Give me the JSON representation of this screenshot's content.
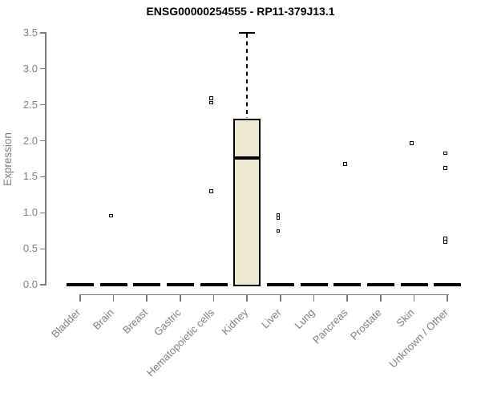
{
  "title": "ENSG00000254555 - RP11-379J13.1",
  "chart_data": {
    "type": "boxplot",
    "title": "ENSG00000254555 - RP11-379J13.1",
    "xlabel": "",
    "ylabel": "Expression",
    "ylim": [
      0,
      3.5
    ],
    "ytick_labels": [
      "0.0",
      "0.5",
      "1.0",
      "1.5",
      "2.0",
      "2.5",
      "3.0",
      "3.5"
    ],
    "grid": false,
    "legend": null,
    "categories": [
      "Bladder",
      "Brain",
      "Breast",
      "Gastric",
      "Hematopoietic cells",
      "Kidney",
      "Liver",
      "Lung",
      "Pancreas",
      "Prostate",
      "Skin",
      "Unknown / Other"
    ],
    "boxes": [
      {
        "category": "Bladder",
        "whisker_low": 0,
        "q1": 0,
        "median": 0,
        "q3": 0,
        "whisker_high": 0,
        "outliers": []
      },
      {
        "category": "Brain",
        "whisker_low": 0,
        "q1": 0,
        "median": 0,
        "q3": 0,
        "whisker_high": 0,
        "outliers": [
          0.96
        ]
      },
      {
        "category": "Breast",
        "whisker_low": 0,
        "q1": 0,
        "median": 0,
        "q3": 0,
        "whisker_high": 0,
        "outliers": []
      },
      {
        "category": "Gastric",
        "whisker_low": 0,
        "q1": 0,
        "median": 0,
        "q3": 0,
        "whisker_high": 0,
        "outliers": []
      },
      {
        "category": "Hematopoietic cells",
        "whisker_low": 0,
        "q1": 0,
        "median": 0,
        "q3": 0,
        "whisker_high": 0,
        "outliers": [
          2.59,
          2.53,
          1.3
        ]
      },
      {
        "category": "Kidney",
        "whisker_low": 0,
        "q1": 0,
        "median": 1.76,
        "q3": 2.31,
        "whisker_high": 3.5,
        "outliers": []
      },
      {
        "category": "Liver",
        "whisker_low": 0,
        "q1": 0,
        "median": 0,
        "q3": 0,
        "whisker_high": 0,
        "outliers": [
          0.97,
          0.93,
          0.75
        ]
      },
      {
        "category": "Lung",
        "whisker_low": 0,
        "q1": 0,
        "median": 0,
        "q3": 0,
        "whisker_high": 0,
        "outliers": []
      },
      {
        "category": "Pancreas",
        "whisker_low": 0,
        "q1": 0,
        "median": 0,
        "q3": 0,
        "whisker_high": 0,
        "outliers": [
          1.68
        ]
      },
      {
        "category": "Prostate",
        "whisker_low": 0,
        "q1": 0,
        "median": 0,
        "q3": 0,
        "whisker_high": 0,
        "outliers": []
      },
      {
        "category": "Skin",
        "whisker_low": 0,
        "q1": 0,
        "median": 0,
        "q3": 0,
        "whisker_high": 0,
        "outliers": [
          1.97
        ]
      },
      {
        "category": "Unknown / Other",
        "whisker_low": 0,
        "q1": 0,
        "median": 0,
        "q3": 0,
        "whisker_high": 0,
        "outliers": [
          1.83,
          1.62,
          0.64,
          0.6
        ]
      }
    ],
    "colors": {
      "box_fill": "#EDE7CD",
      "box_border": "#000000",
      "mark_color": "#000000",
      "axis_color": "#7A7A7A",
      "tick_label_color": "#7F7F7F",
      "title_color": "#000000"
    }
  }
}
